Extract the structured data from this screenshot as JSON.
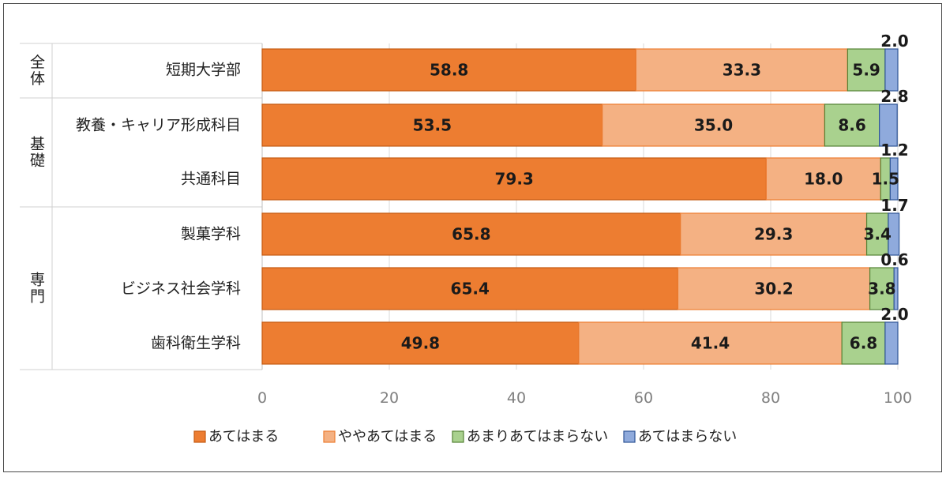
{
  "chart_data": {
    "type": "bar",
    "orientation": "horizontal",
    "stacked": true,
    "categories": [
      "短期大学部",
      "教養・キャリア形成科目",
      "共通科目",
      "製菓学科",
      "ビジネス社会学科",
      "歯科衛生学科"
    ],
    "groups": [
      {
        "label": "全体",
        "members": [
          "短期大学部"
        ]
      },
      {
        "label": "基礎",
        "members": [
          "教養・キャリア形成科目",
          "共通科目"
        ]
      },
      {
        "label": "専門",
        "members": [
          "製菓学科",
          "ビジネス社会学科",
          "歯科衛生学科"
        ]
      }
    ],
    "series": [
      {
        "name": "あてはまる",
        "color": "#ED7D31",
        "values": [
          58.8,
          53.5,
          79.3,
          65.8,
          65.4,
          49.8
        ]
      },
      {
        "name": "ややあてはまる",
        "color": "#F4B183",
        "values": [
          33.3,
          35.0,
          18.0,
          29.3,
          30.2,
          41.4
        ]
      },
      {
        "name": "あまりあてはまらない",
        "color": "#A9D18E",
        "values": [
          5.9,
          8.6,
          1.5,
          3.4,
          3.8,
          6.8
        ]
      },
      {
        "name": "あてはまらない",
        "color": "#8FAADC",
        "values": [
          2.0,
          2.8,
          1.2,
          1.7,
          0.6,
          2.0
        ]
      }
    ],
    "labels": [
      [
        "58.8",
        "33.3",
        "5.9",
        "2.0"
      ],
      [
        "53.5",
        "35.0",
        "8.6",
        "2.8"
      ],
      [
        "79.3",
        "18.0",
        "1.5",
        "1.2"
      ],
      [
        "65.8",
        "29.3",
        "3.4",
        "1.7"
      ],
      [
        "65.4",
        "30.2",
        "3.8",
        "0.6"
      ],
      [
        "49.8",
        "41.4",
        "6.8",
        "2.0"
      ]
    ],
    "xlim": [
      0,
      100
    ],
    "xticks": [
      "0",
      "20",
      "40",
      "60",
      "80",
      "100"
    ],
    "grid": true,
    "legend_position": "bottom",
    "title": "",
    "xlabel": "",
    "ylabel": ""
  }
}
